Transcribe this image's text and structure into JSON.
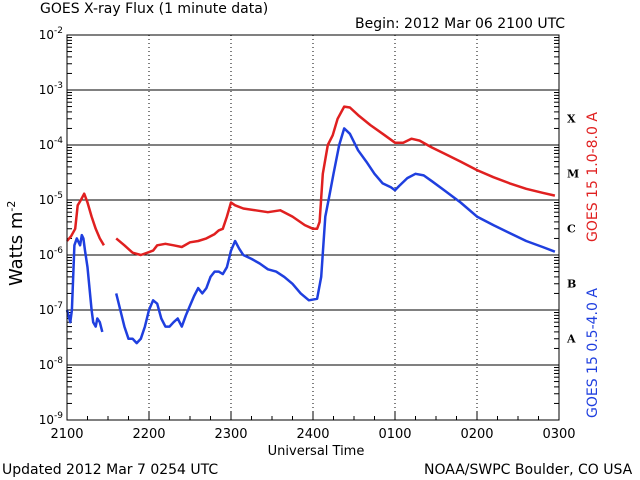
{
  "header": {
    "title": "GOES X-ray Flux (1 minute data)",
    "begin": "Begin: 2012 Mar 06 2100 UTC",
    "updated": "Updated 2012 Mar  7 0254 UTC",
    "credit": "NOAA/SWPC Boulder, CO USA"
  },
  "chart_data": {
    "type": "line",
    "title": "GOES X-ray Flux (1 minute data)",
    "xlabel": "Universal Time",
    "ylabel_base": "Watts m",
    "ylabel_exp": "-2",
    "yscale": "log",
    "xlim_hours": [
      0,
      6
    ],
    "ylim": [
      1e-09,
      0.01
    ],
    "x_ticks": [
      "2100",
      "2200",
      "2300",
      "2400",
      "0100",
      "0200",
      "0300"
    ],
    "y_tick_exponents": [
      -9,
      -8,
      -7,
      -6,
      -5,
      -4,
      -3,
      -2
    ],
    "flare_classes": [
      {
        "label": "A",
        "level": 1e-08
      },
      {
        "label": "B",
        "level": 1e-07
      },
      {
        "label": "C",
        "level": 1e-06
      },
      {
        "label": "M",
        "level": 1e-05
      },
      {
        "label": "X",
        "level": 0.0001
      }
    ],
    "series": [
      {
        "name": "GOES 15 1.0-8.0 A",
        "color": "#e02020",
        "segments": [
          [
            [
              0.0,
              1.8e-06
            ],
            [
              0.05,
              2.2e-06
            ],
            [
              0.1,
              3e-06
            ],
            [
              0.13,
              8e-06
            ],
            [
              0.17,
              1e-05
            ],
            [
              0.21,
              1.3e-05
            ],
            [
              0.25,
              9e-06
            ],
            [
              0.3,
              5e-06
            ],
            [
              0.35,
              3e-06
            ],
            [
              0.4,
              2e-06
            ],
            [
              0.45,
              1.5e-06
            ]
          ],
          [
            [
              0.6,
              2e-06
            ],
            [
              0.7,
              1.5e-06
            ],
            [
              0.8,
              1.1e-06
            ],
            [
              0.9,
              1e-06
            ],
            [
              0.98,
              1.1e-06
            ],
            [
              1.05,
              1.2e-06
            ],
            [
              1.1,
              1.5e-06
            ],
            [
              1.2,
              1.6e-06
            ],
            [
              1.3,
              1.5e-06
            ],
            [
              1.4,
              1.4e-06
            ],
            [
              1.5,
              1.7e-06
            ],
            [
              1.6,
              1.8e-06
            ],
            [
              1.7,
              2e-06
            ],
            [
              1.8,
              2.4e-06
            ],
            [
              1.85,
              2.8e-06
            ],
            [
              1.9,
              3e-06
            ],
            [
              1.95,
              5e-06
            ],
            [
              2.0,
              9e-06
            ],
            [
              2.05,
              8e-06
            ],
            [
              2.15,
              7e-06
            ],
            [
              2.3,
              6.5e-06
            ],
            [
              2.45,
              6e-06
            ],
            [
              2.6,
              6.5e-06
            ],
            [
              2.75,
              5e-06
            ],
            [
              2.9,
              3.5e-06
            ],
            [
              3.0,
              3e-06
            ],
            [
              3.05,
              3e-06
            ],
            [
              3.08,
              4e-06
            ],
            [
              3.12,
              3e-05
            ],
            [
              3.18,
              0.0001
            ],
            [
              3.24,
              0.00015
            ],
            [
              3.3,
              0.0003
            ],
            [
              3.38,
              0.0005
            ],
            [
              3.45,
              0.00048
            ],
            [
              3.55,
              0.00035
            ],
            [
              3.7,
              0.00023
            ],
            [
              3.85,
              0.00016
            ],
            [
              4.0,
              0.00011
            ],
            [
              4.1,
              0.00011
            ],
            [
              4.2,
              0.00013
            ],
            [
              4.3,
              0.00012
            ],
            [
              4.45,
              9e-05
            ],
            [
              4.6,
              7e-05
            ],
            [
              4.8,
              5e-05
            ],
            [
              5.0,
              3.5e-05
            ],
            [
              5.2,
              2.6e-05
            ],
            [
              5.4,
              2e-05
            ],
            [
              5.6,
              1.6e-05
            ],
            [
              5.8,
              1.35e-05
            ],
            [
              5.95,
              1.2e-05
            ]
          ]
        ]
      },
      {
        "name": "GOES 15 0.5-4.0 A",
        "color": "#1f3fdf",
        "segments": [
          [
            [
              0.0,
              1e-07
            ],
            [
              0.04,
              6e-08
            ],
            [
              0.06,
              1e-07
            ],
            [
              0.09,
              1.5e-06
            ],
            [
              0.12,
              2e-06
            ],
            [
              0.16,
              1.5e-06
            ],
            [
              0.18,
              2.3e-06
            ],
            [
              0.2,
              2e-06
            ],
            [
              0.22,
              1.2e-06
            ],
            [
              0.25,
              6e-07
            ],
            [
              0.28,
              2e-07
            ],
            [
              0.3,
              1e-07
            ],
            [
              0.32,
              6e-08
            ],
            [
              0.35,
              5e-08
            ],
            [
              0.37,
              7e-08
            ],
            [
              0.4,
              6e-08
            ],
            [
              0.43,
              4e-08
            ]
          ],
          [
            [
              0.6,
              2e-07
            ],
            [
              0.65,
              1e-07
            ],
            [
              0.7,
              5e-08
            ],
            [
              0.75,
              3e-08
            ],
            [
              0.8,
              3e-08
            ],
            [
              0.85,
              2.5e-08
            ],
            [
              0.9,
              3e-08
            ],
            [
              0.95,
              5e-08
            ],
            [
              1.0,
              1e-07
            ],
            [
              1.05,
              1.5e-07
            ],
            [
              1.1,
              1.3e-07
            ],
            [
              1.15,
              7e-08
            ],
            [
              1.2,
              5e-08
            ],
            [
              1.25,
              5e-08
            ],
            [
              1.3,
              6e-08
            ],
            [
              1.35,
              7e-08
            ],
            [
              1.4,
              5e-08
            ],
            [
              1.45,
              8e-08
            ],
            [
              1.5,
              1.2e-07
            ],
            [
              1.55,
              1.8e-07
            ],
            [
              1.6,
              2.5e-07
            ],
            [
              1.65,
              2e-07
            ],
            [
              1.7,
              2.5e-07
            ],
            [
              1.75,
              4e-07
            ],
            [
              1.8,
              5e-07
            ],
            [
              1.85,
              5e-07
            ],
            [
              1.9,
              4.5e-07
            ],
            [
              1.95,
              6e-07
            ],
            [
              2.0,
              1.2e-06
            ],
            [
              2.05,
              1.8e-06
            ],
            [
              2.1,
              1.3e-06
            ],
            [
              2.15,
              1e-06
            ],
            [
              2.25,
              8.5e-07
            ],
            [
              2.35,
              7e-07
            ],
            [
              2.45,
              5.5e-07
            ],
            [
              2.55,
              5e-07
            ],
            [
              2.65,
              4e-07
            ],
            [
              2.75,
              3e-07
            ],
            [
              2.85,
              2e-07
            ],
            [
              2.95,
              1.5e-07
            ],
            [
              3.05,
              1.6e-07
            ],
            [
              3.1,
              4e-07
            ],
            [
              3.15,
              5e-06
            ],
            [
              3.2,
              1.2e-05
            ],
            [
              3.25,
              3e-05
            ],
            [
              3.32,
              0.0001
            ],
            [
              3.38,
              0.0002
            ],
            [
              3.45,
              0.00016
            ],
            [
              3.55,
              8e-05
            ],
            [
              3.65,
              5e-05
            ],
            [
              3.75,
              3e-05
            ],
            [
              3.85,
              2e-05
            ],
            [
              3.95,
              1.7e-05
            ],
            [
              4.0,
              1.5e-05
            ],
            [
              4.05,
              1.8e-05
            ],
            [
              4.15,
              2.5e-05
            ],
            [
              4.25,
              3e-05
            ],
            [
              4.35,
              2.8e-05
            ],
            [
              4.45,
              2.2e-05
            ],
            [
              4.6,
              1.5e-05
            ],
            [
              4.8,
              9e-06
            ],
            [
              5.0,
              5e-06
            ],
            [
              5.2,
              3.5e-06
            ],
            [
              5.4,
              2.5e-06
            ],
            [
              5.6,
              1.8e-06
            ],
            [
              5.8,
              1.4e-06
            ],
            [
              5.95,
              1.15e-06
            ]
          ]
        ]
      }
    ]
  }
}
